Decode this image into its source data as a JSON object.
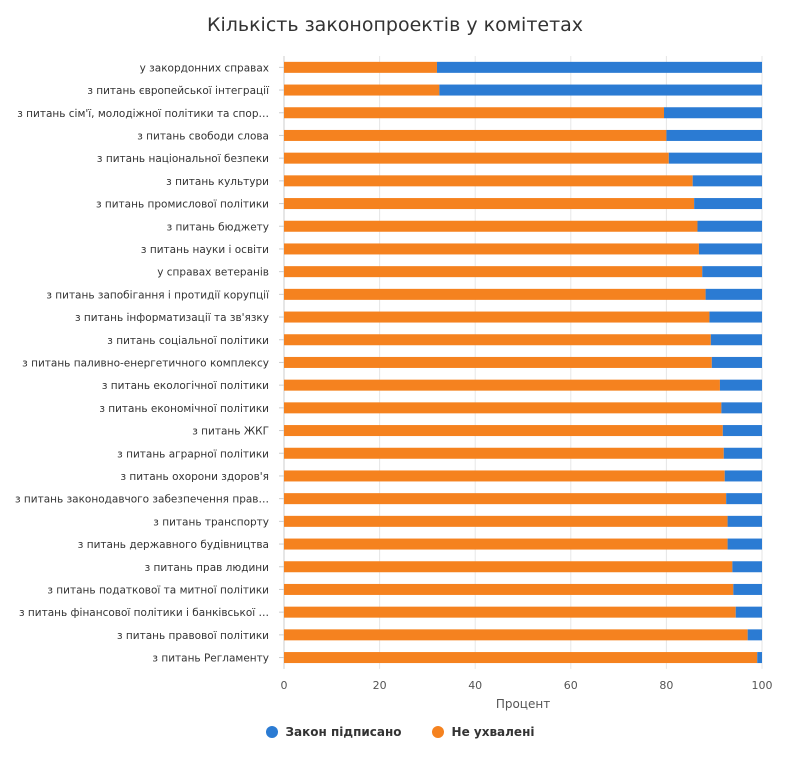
{
  "chart_data": {
    "type": "bar",
    "orientation": "horizontal",
    "stacked": true,
    "title": "Кількість законопроектів у комітетах",
    "xlabel": "Процент",
    "ylabel": "",
    "xlim": [
      0,
      100
    ],
    "xticks": [
      0,
      20,
      40,
      60,
      80,
      100
    ],
    "grid": true,
    "legend_position": "bottom",
    "categories": [
      "у закордонних справах",
      "з питань європейської інтеграції",
      "з питань сім'ї, молодіжної політики та спор…",
      "з питань свободи слова",
      "з питань національної безпеки",
      "з питань культури",
      "з питань промислової політики",
      "з питань бюджету",
      "з питань науки і освіти",
      "у справах ветеранів",
      "з питань запобігання і протидії корупції",
      "з питань інформатизації та зв'язку",
      "з питань соціальної політики",
      "з питань паливно-енергетичного комплексу",
      "з питань екологічної політики",
      "з питань економічної політики",
      "з питань ЖКГ",
      "з питань аграрної політики",
      "з питань охорони здоров'я",
      "з питань законодавчого забезпечення прав…",
      "з питань транспорту",
      "з питань державного будівництва",
      "з питань прав людини",
      "з питань податкової та митної політики",
      "з питань фінансової політики і банківської …",
      "з питань правової політики",
      "з питань Регламенту"
    ],
    "series": [
      {
        "name": "Не ухвалені",
        "color": "#F5821F",
        "values": [
          32,
          32.5,
          79.5,
          80,
          80.5,
          85.5,
          85.8,
          86.5,
          86.8,
          87.5,
          88.2,
          89,
          89.3,
          89.5,
          91.2,
          91.5,
          91.8,
          92,
          92.2,
          92.5,
          92.8,
          92.8,
          93.8,
          94,
          94.5,
          97,
          99
        ]
      },
      {
        "name": "Закон підписано",
        "color": "#2B7BD3",
        "values": [
          68,
          67.5,
          20.5,
          20,
          19.5,
          14.5,
          14.2,
          13.5,
          13.2,
          12.5,
          11.8,
          11,
          10.7,
          10.5,
          8.8,
          8.5,
          8.2,
          8,
          7.8,
          7.5,
          7.2,
          7.2,
          6.2,
          6,
          5.5,
          3,
          1
        ]
      }
    ],
    "legend_order": [
      "Закон підписано",
      "Не ухвалені"
    ]
  }
}
